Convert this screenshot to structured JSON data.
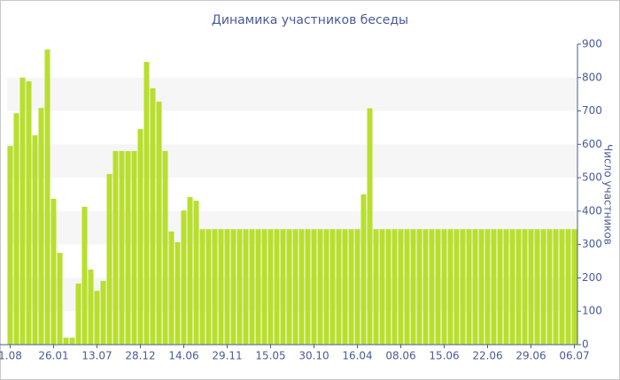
{
  "chart_data": {
    "type": "bar",
    "title": "Динамика участников беседы",
    "y_axis_label": "Число участников",
    "categories": [
      "1.08",
      null,
      null,
      null,
      null,
      null,
      null,
      "26.01",
      null,
      null,
      null,
      null,
      null,
      null,
      "13.07",
      null,
      null,
      null,
      null,
      null,
      null,
      "28.12",
      null,
      null,
      null,
      null,
      null,
      null,
      "14.06",
      null,
      null,
      null,
      null,
      null,
      null,
      "29.11",
      null,
      null,
      null,
      null,
      null,
      null,
      "15.05",
      null,
      null,
      null,
      null,
      null,
      null,
      "30.10",
      null,
      null,
      null,
      null,
      null,
      null,
      "16.04",
      null,
      null,
      null,
      null,
      null,
      null,
      "08.06",
      null,
      null,
      null,
      null,
      null,
      null,
      "15.06",
      null,
      null,
      null,
      null,
      null,
      null,
      "22.06",
      null,
      null,
      null,
      null,
      null,
      null,
      "29.06",
      null,
      null,
      null,
      null,
      null,
      null,
      "06.07"
    ],
    "values": [
      595,
      693,
      800,
      789,
      627,
      709,
      884,
      437,
      275,
      21,
      21,
      183,
      413,
      225,
      161,
      191,
      511,
      580,
      580,
      580,
      580,
      646,
      847,
      768,
      728,
      580,
      339,
      307,
      402,
      442,
      431,
      346,
      346,
      346,
      346,
      346,
      346,
      346,
      346,
      346,
      346,
      346,
      346,
      346,
      346,
      346,
      346,
      346,
      346,
      346,
      346,
      346,
      346,
      346,
      346,
      346,
      346,
      450,
      708,
      346,
      346,
      346,
      346,
      346,
      346,
      346,
      346,
      346,
      346,
      346,
      346,
      346,
      346,
      346,
      346,
      346,
      346,
      346,
      346,
      346,
      346,
      346,
      346,
      346,
      346,
      346,
      346,
      346,
      346,
      346,
      346,
      346
    ],
    "color": "#b8df2e",
    "ylim": [
      0,
      900
    ],
    "yticks": [
      0,
      100,
      200,
      300,
      400,
      500,
      600,
      700,
      800,
      900
    ],
    "y_axis_side": "right",
    "grid": true
  }
}
